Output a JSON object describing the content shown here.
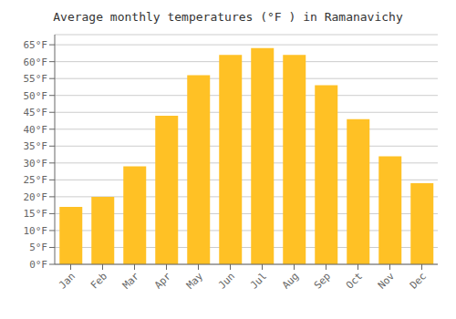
{
  "chart_data": {
    "type": "bar",
    "title": "Average monthly temperatures (°F ) in Ramanavichy",
    "categories": [
      "Jan",
      "Feb",
      "Mar",
      "Apr",
      "May",
      "Jun",
      "Jul",
      "Aug",
      "Sep",
      "Oct",
      "Nov",
      "Dec"
    ],
    "values": [
      17,
      20,
      29,
      44,
      56,
      62,
      64,
      62,
      53,
      43,
      32,
      24
    ],
    "color": "#FFC125",
    "ylim": [
      0,
      68
    ],
    "yticks": [
      {
        "value": 0,
        "label": "0°F"
      },
      {
        "value": 5,
        "label": "5°F"
      },
      {
        "value": 10,
        "label": "10°F"
      },
      {
        "value": 15,
        "label": "15°F"
      },
      {
        "value": 20,
        "label": "20°F"
      },
      {
        "value": 25,
        "label": "25°F"
      },
      {
        "value": 30,
        "label": "30°F"
      },
      {
        "value": 35,
        "label": "35°F"
      },
      {
        "value": 40,
        "label": "40°F"
      },
      {
        "value": 45,
        "label": "45°F"
      },
      {
        "value": 50,
        "label": "50°F"
      },
      {
        "value": 55,
        "label": "55°F"
      },
      {
        "value": 60,
        "label": "60°F"
      },
      {
        "value": 65,
        "label": "65°F"
      }
    ],
    "grid": true
  }
}
